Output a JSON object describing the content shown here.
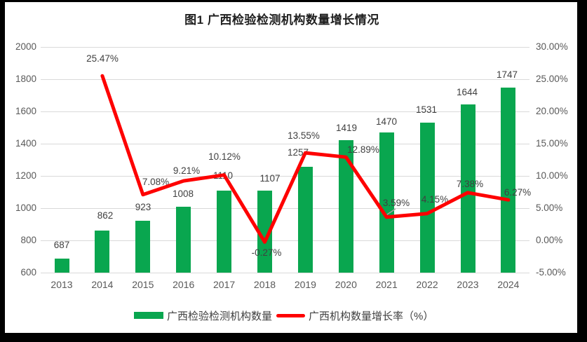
{
  "title": "图1 广西检验检测机构数量增长情况",
  "colors": {
    "bar": "#09a64f",
    "line": "#fe0000",
    "gridline": "#d9d9d9",
    "axis_text": "#595959",
    "label_text": "#404040",
    "leader_line": "#a6a6a6",
    "surface": "#ffffff",
    "frame": "#000000"
  },
  "legend": {
    "position": "bottom",
    "items": [
      {
        "label": "广西检验检测机构数量",
        "marker": "bar-swatch"
      },
      {
        "label": "广西机构数量增长率（%）",
        "marker": "line-swatch"
      }
    ]
  },
  "chart_data": {
    "type": "bar+line",
    "title": "图1 广西检验检测机构数量增长情况",
    "categories": [
      "2013",
      "2014",
      "2015",
      "2016",
      "2017",
      "2018",
      "2019",
      "2020",
      "2021",
      "2022",
      "2023",
      "2024"
    ],
    "series": [
      {
        "name": "广西检验检测机构数量",
        "type": "bar",
        "axis": "left",
        "color": "#09a64f",
        "values": [
          687,
          862,
          923,
          1008,
          1110,
          1107,
          1257,
          1419,
          1470,
          1531,
          1644,
          1747
        ],
        "data_labels": [
          "687",
          "862",
          "923",
          "1008",
          "1110",
          "1107",
          "1257",
          "1419",
          "1470",
          "1531",
          "1644",
          "1747"
        ]
      },
      {
        "name": "广西机构数量增长率（%）",
        "type": "line",
        "axis": "right",
        "color": "#fe0000",
        "values": [
          null,
          25.47,
          7.08,
          9.21,
          10.12,
          -0.27,
          13.55,
          12.89,
          3.59,
          4.15,
          7.38,
          6.27
        ],
        "data_labels": [
          "25.47%",
          "7.08%",
          "9.21%",
          "10.12%",
          "-0.27%",
          "13.55%",
          "12.89%",
          "3.59%",
          "4.15%",
          "7.38%",
          "6.27%"
        ]
      }
    ],
    "left_axis": {
      "min": 600,
      "max": 2000,
      "step": 200,
      "ticks_top_down": [
        "2000",
        "1800",
        "1600",
        "1400",
        "1200",
        "1000",
        "800",
        "600"
      ]
    },
    "right_axis": {
      "min": -5,
      "max": 30,
      "step": 5,
      "ticks_top_down": [
        "30.00%",
        "25.00%",
        "20.00%",
        "15.00%",
        "10.00%",
        "5.00%",
        "0.00%",
        "-5.00%"
      ]
    },
    "grid": "horizontal",
    "legend_position": "bottom"
  }
}
